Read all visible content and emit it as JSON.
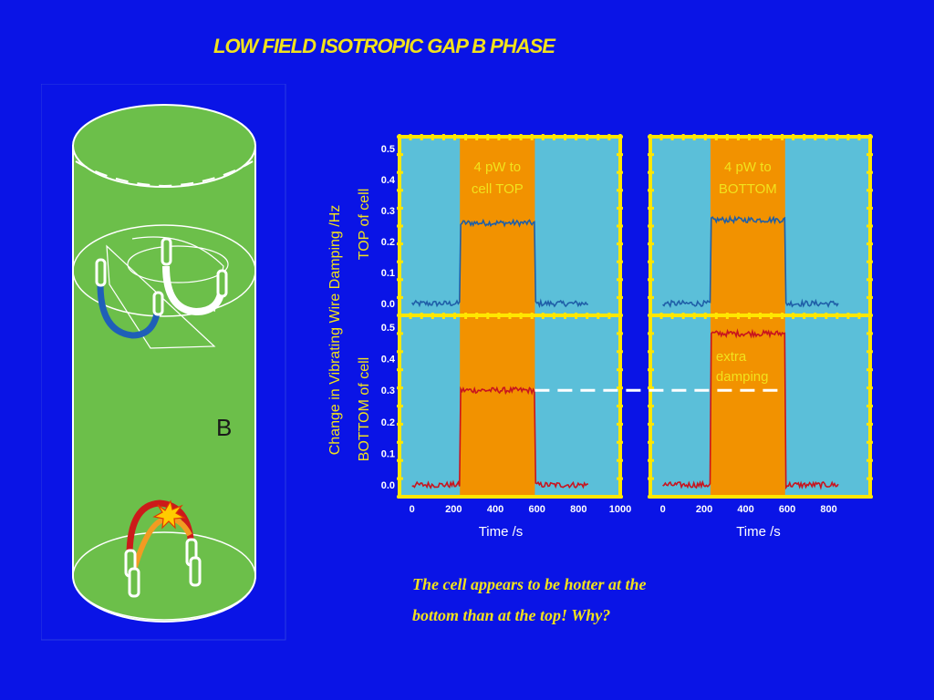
{
  "slide": {
    "title": "LOW FIELD ISOTROPIC GAP B PHASE",
    "caption_line1": "The cell appears to be hotter at the",
    "caption_line2": "bottom than at the top! Why?"
  },
  "diagram": {
    "phase_label": "B",
    "colors": {
      "cell_fill": "#6cbf4a",
      "wire_blue": "#1f5fb8",
      "wire_red": "#cc1a1a",
      "wire_orange": "#f29b22"
    }
  },
  "colors": {
    "background": "#0a14e6",
    "title_text": "#f2e21c",
    "panel_border": "#ffe600",
    "plot_bg": "#5bbfd9",
    "heat_band": "#f29200",
    "top_trace": "#1f5fa8",
    "bottom_trace": "#c8141e",
    "axis_text": "#ffffff",
    "ylabel_text": "#f2e21c"
  },
  "chart_data": {
    "type": "line",
    "ylabel": "Change in Vibrating Wire Damping /Hz",
    "xlabel": "Time /s",
    "ylim": [
      0,
      0.5
    ],
    "yticks": [
      "0.0",
      "0.1",
      "0.2",
      "0.3",
      "0.4",
      "0.5"
    ],
    "row_labels": [
      "TOP of cell",
      "BOTTOM of cell"
    ],
    "columns": [
      {
        "annotation": [
          "4 pW to",
          "cell TOP"
        ],
        "xlim": [
          -60,
          1000
        ],
        "xticks": [
          "0",
          "200",
          "400",
          "600",
          "800",
          "1000"
        ],
        "heat_interval": [
          230,
          590
        ],
        "series": [
          {
            "panel": "TOP of cell",
            "baseline": 0.0,
            "plateau": 0.26,
            "x_range": [
              0,
              850
            ]
          },
          {
            "panel": "BOTTOM of cell",
            "baseline": 0.0,
            "plateau": 0.3,
            "x_range": [
              0,
              850
            ]
          }
        ]
      },
      {
        "annotation": [
          "4 pW to",
          "BOTTOM"
        ],
        "annotation_extra": [
          "extra",
          "damping"
        ],
        "xlim": [
          -60,
          1000
        ],
        "xticks": [
          "0",
          "200",
          "400",
          "600",
          "800"
        ],
        "heat_interval": [
          230,
          590
        ],
        "series": [
          {
            "panel": "TOP of cell",
            "baseline": 0.0,
            "plateau": 0.27,
            "x_range": [
              0,
              850
            ]
          },
          {
            "panel": "BOTTOM of cell",
            "baseline": 0.0,
            "plateau": 0.48,
            "x_range": [
              0,
              850
            ]
          }
        ]
      }
    ],
    "reference_line": {
      "y": 0.3,
      "style": "dashed"
    }
  }
}
